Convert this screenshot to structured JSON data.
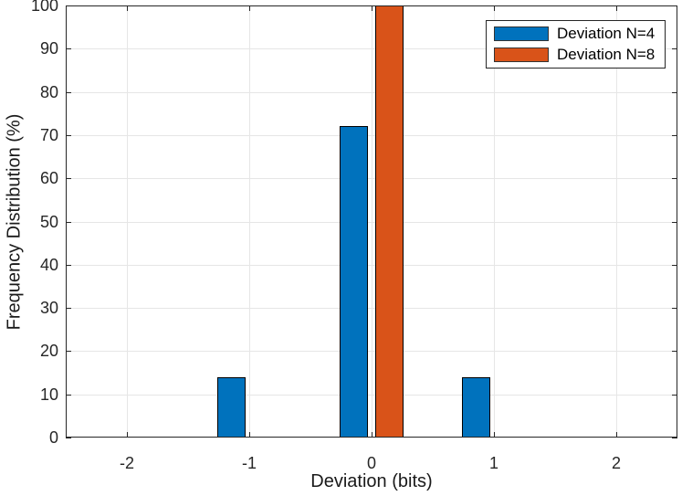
{
  "chart_data": {
    "type": "bar",
    "mode": "grouped",
    "title": "",
    "xlabel": "Deviation (bits)",
    "ylabel": "Frequency Distribution (%)",
    "x": [
      -2,
      -1,
      0,
      1,
      2
    ],
    "series": [
      {
        "name": "Deviation N=4",
        "color": "#0072BD",
        "values": [
          0,
          14,
          72,
          14,
          0
        ]
      },
      {
        "name": "Deviation N=8",
        "color": "#D95319",
        "values": [
          0,
          0,
          100,
          0,
          0
        ]
      }
    ],
    "xlim": [
      -2.5,
      2.5
    ],
    "ylim": [
      0,
      100
    ],
    "xticks": [
      -2,
      -1,
      0,
      1,
      2
    ],
    "yticks": [
      0,
      10,
      20,
      30,
      40,
      50,
      60,
      70,
      80,
      90,
      100
    ],
    "grid": true,
    "legend_position": "top-right",
    "bar_width_units": 0.229,
    "group_offset_units": 0.143,
    "bar_edge_color": "#000000",
    "grid_color": "#e6e6e6",
    "axis_color": "#262626",
    "background": "#ffffff"
  }
}
